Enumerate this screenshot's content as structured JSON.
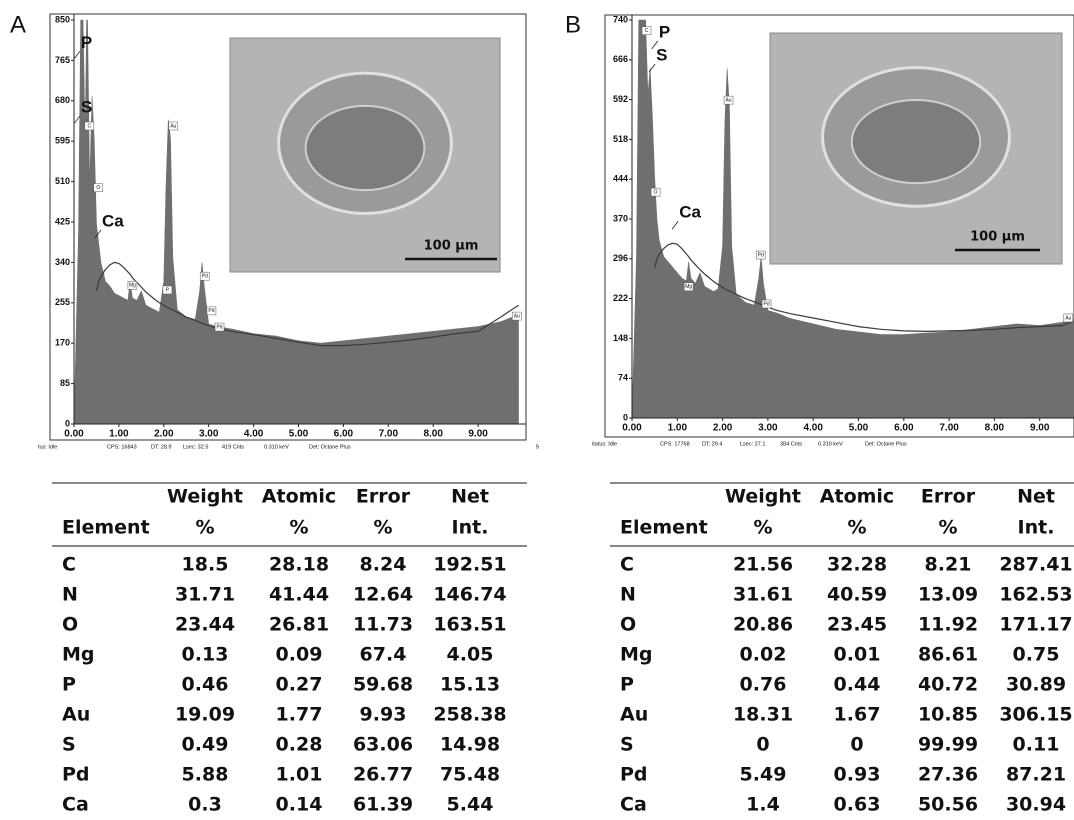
{
  "panel_labels": [
    "A",
    "B"
  ],
  "chart_data": [
    {
      "type": "area",
      "x": [
        0,
        0.1,
        0.15,
        0.2,
        0.25,
        0.28,
        0.3,
        0.35,
        0.4,
        0.45,
        0.5,
        0.55,
        0.6,
        0.7,
        0.8,
        0.9,
        1.0,
        1.1,
        1.2,
        1.25,
        1.3,
        1.4,
        1.5,
        1.6,
        1.7,
        1.8,
        1.9,
        2.0,
        2.05,
        2.1,
        2.15,
        2.2,
        2.3,
        2.5,
        2.7,
        2.8,
        2.85,
        2.9,
        3.0,
        3.2,
        3.5,
        4.0,
        4.5,
        5.0,
        5.5,
        6.0,
        6.5,
        7.0,
        7.5,
        8.0,
        8.5,
        9.0,
        9.5,
        9.9
      ],
      "series": [
        {
          "color": "#6f6f6f",
          "values": [
            0,
            400,
            850,
            850,
            600,
            850,
            850,
            500,
            690,
            600,
            420,
            380,
            340,
            300,
            290,
            275,
            270,
            265,
            260,
            300,
            265,
            260,
            280,
            250,
            245,
            240,
            235,
            300,
            500,
            640,
            600,
            350,
            240,
            225,
            220,
            280,
            340,
            290,
            210,
            205,
            200,
            190,
            185,
            175,
            170,
            175,
            180,
            185,
            190,
            195,
            200,
            205,
            215,
            230
          ]
        },
        {
          "color": "#3a3a3a",
          "values": [
            null,
            null,
            null,
            null,
            null,
            null,
            null,
            null,
            null,
            null,
            280,
            300,
            310,
            325,
            335,
            340,
            338,
            330,
            320,
            315,
            308,
            298,
            288,
            278,
            270,
            262,
            255,
            250,
            247,
            245,
            242,
            240,
            235,
            225,
            218,
            214,
            212,
            210,
            207,
            200,
            195,
            188,
            180,
            172,
            165,
            165,
            168,
            172,
            177,
            183,
            190,
            195,
            225,
            250
          ]
        }
      ],
      "xlim": [
        0,
        10
      ],
      "ylim": [
        0,
        850
      ],
      "yticks": [
        0,
        85,
        170,
        255,
        340,
        425,
        510,
        595,
        680,
        765,
        850
      ],
      "xticks": [
        {
          "value": 0,
          "label": "0.00"
        },
        {
          "value": 1,
          "label": "1.00"
        },
        {
          "value": 2,
          "label": "2.00"
        },
        {
          "value": 3,
          "label": "3.00"
        },
        {
          "value": 4,
          "label": "4.00"
        },
        {
          "value": 5,
          "label": "5.00"
        },
        {
          "value": 6,
          "label": "6.00"
        },
        {
          "value": 7,
          "label": "7.00"
        },
        {
          "value": 8,
          "label": "8.00"
        },
        {
          "value": 9,
          "label": "9.00"
        }
      ],
      "labels": [
        {
          "text": "P",
          "x": 0.13,
          "y": 801
        },
        {
          "text": "S",
          "x": 0.13,
          "y": 665
        },
        {
          "text": "Ca",
          "x": 0.6,
          "y": 425
        }
      ],
      "peak_markers": [
        {
          "text": "C",
          "x": 0.33,
          "y": 627
        },
        {
          "text": "O",
          "x": 0.53,
          "y": 497
        },
        {
          "text": "Mg",
          "x": 1.29,
          "y": 292
        },
        {
          "text": "P",
          "x": 2.07,
          "y": 282
        },
        {
          "text": "Au",
          "x": 2.2,
          "y": 627
        },
        {
          "text": "Pd",
          "x": 2.9,
          "y": 311
        },
        {
          "text": "Pd",
          "x": 3.05,
          "y": 238
        },
        {
          "text": "Pd",
          "x": 3.23,
          "y": 204
        },
        {
          "text": "Au",
          "x": 9.85,
          "y": 227
        }
      ],
      "inset": {
        "scale_label": "100 µm"
      },
      "status": [
        "tus: Idle",
        "CPS: 16843",
        "DT: 28.9",
        "Lsec: 32.5",
        "419 Cnts",
        "0.310 keV",
        "Det: Octane Plus",
        "5"
      ]
    },
    {
      "type": "area",
      "x": [
        0,
        0.1,
        0.15,
        0.2,
        0.25,
        0.28,
        0.3,
        0.35,
        0.4,
        0.45,
        0.5,
        0.55,
        0.6,
        0.7,
        0.8,
        0.9,
        1.0,
        1.1,
        1.2,
        1.25,
        1.3,
        1.4,
        1.5,
        1.6,
        1.7,
        1.8,
        1.9,
        2.0,
        2.05,
        2.1,
        2.15,
        2.2,
        2.3,
        2.5,
        2.7,
        2.8,
        2.85,
        2.9,
        3.0,
        3.2,
        3.5,
        4.0,
        4.5,
        5.0,
        5.5,
        6.0,
        6.5,
        7.0,
        7.5,
        8.0,
        8.5,
        9.0,
        9.5,
        9.75
      ],
      "series": [
        {
          "color": "#6f6f6f",
          "values": [
            0,
            300,
            740,
            740,
            740,
            740,
            740,
            600,
            650,
            560,
            450,
            370,
            330,
            300,
            290,
            280,
            270,
            260,
            255,
            290,
            260,
            250,
            270,
            245,
            240,
            235,
            240,
            320,
            550,
            650,
            580,
            320,
            230,
            215,
            210,
            260,
            300,
            250,
            200,
            195,
            185,
            175,
            165,
            160,
            155,
            155,
            158,
            160,
            165,
            170,
            175,
            172,
            178,
            185
          ]
        },
        {
          "color": "#3a3a3a",
          "values": [
            null,
            null,
            null,
            null,
            null,
            null,
            null,
            null,
            null,
            null,
            280,
            295,
            305,
            315,
            322,
            325,
            323,
            315,
            305,
            300,
            294,
            285,
            276,
            268,
            261,
            254,
            248,
            243,
            240,
            238,
            236,
            234,
            230,
            222,
            216,
            213,
            211,
            209,
            206,
            200,
            194,
            186,
            178,
            170,
            165,
            162,
            161,
            162,
            163,
            165,
            168,
            170,
            172,
            180
          ]
        }
      ],
      "xlim": [
        0,
        9.75
      ],
      "ylim": [
        0,
        740
      ],
      "yticks": [
        0,
        74,
        148,
        222,
        296,
        370,
        444,
        518,
        592,
        666,
        740
      ],
      "xticks": [
        {
          "value": 0,
          "label": "0.00"
        },
        {
          "value": 1,
          "label": "1.00"
        },
        {
          "value": 2,
          "label": "2.00"
        },
        {
          "value": 3,
          "label": "3.00"
        },
        {
          "value": 4,
          "label": "4.00"
        },
        {
          "value": 5,
          "label": "5.00"
        },
        {
          "value": 6,
          "label": "6.00"
        },
        {
          "value": 7,
          "label": "7.00"
        },
        {
          "value": 8,
          "label": "8.00"
        },
        {
          "value": 9,
          "label": "9.00"
        }
      ],
      "labels": [
        {
          "text": "P",
          "x": 0.57,
          "y": 716
        },
        {
          "text": "S",
          "x": 0.51,
          "y": 673
        },
        {
          "text": "Ca",
          "x": 1.02,
          "y": 381
        }
      ],
      "peak_markers": [
        {
          "text": "C",
          "x": 0.31,
          "y": 720
        },
        {
          "text": "O",
          "x": 0.51,
          "y": 420
        },
        {
          "text": "Mg",
          "x": 1.24,
          "y": 244
        },
        {
          "text": "Au",
          "x": 2.12,
          "y": 591
        },
        {
          "text": "Pd",
          "x": 2.83,
          "y": 303
        },
        {
          "text": "Pd",
          "x": 2.96,
          "y": 212
        },
        {
          "text": "Au",
          "x": 9.62,
          "y": 186
        }
      ],
      "inset": {
        "scale_label": "100 µm"
      },
      "status": [
        "itatus: Idle",
        "CPS: 17768",
        "DT: 29.4",
        "Lsec: 27.1",
        "384 Cnts",
        "0.310 keV",
        "Det: Octane Plus"
      ]
    }
  ],
  "tables": [
    {
      "columns": [
        [
          "Element"
        ],
        [
          "Weight",
          "%"
        ],
        [
          "Atomic",
          "%"
        ],
        [
          "Error",
          "%"
        ],
        [
          "Net",
          "Int."
        ]
      ],
      "rows": [
        [
          "C",
          "18.5",
          "28.18",
          "8.24",
          "192.51"
        ],
        [
          "N",
          "31.71",
          "41.44",
          "12.64",
          "146.74"
        ],
        [
          "O",
          "23.44",
          "26.81",
          "11.73",
          "163.51"
        ],
        [
          "Mg",
          "0.13",
          "0.09",
          "67.4",
          "4.05"
        ],
        [
          "P",
          "0.46",
          "0.27",
          "59.68",
          "15.13"
        ],
        [
          "Au",
          "19.09",
          "1.77",
          "9.93",
          "258.38"
        ],
        [
          "S",
          "0.49",
          "0.28",
          "63.06",
          "14.98"
        ],
        [
          "Pd",
          "5.88",
          "1.01",
          "26.77",
          "75.48"
        ],
        [
          "Ca",
          "0.3",
          "0.14",
          "61.39",
          "5.44"
        ]
      ]
    },
    {
      "columns": [
        [
          "Element"
        ],
        [
          "Weight",
          "%"
        ],
        [
          "Atomic",
          "%"
        ],
        [
          "Error",
          "%"
        ],
        [
          "Net",
          "Int."
        ]
      ],
      "rows": [
        [
          "C",
          "21.56",
          "32.28",
          "8.21",
          "287.41"
        ],
        [
          "N",
          "31.61",
          "40.59",
          "13.09",
          "162.53"
        ],
        [
          "O",
          "20.86",
          "23.45",
          "11.92",
          "171.17"
        ],
        [
          "Mg",
          "0.02",
          "0.01",
          "86.61",
          "0.75"
        ],
        [
          "P",
          "0.76",
          "0.44",
          "40.72",
          "30.89"
        ],
        [
          "Au",
          "18.31",
          "1.67",
          "10.85",
          "306.15"
        ],
        [
          "S",
          "0",
          "0",
          "99.99",
          "0.11"
        ],
        [
          "Pd",
          "5.49",
          "0.93",
          "27.36",
          "87.21"
        ],
        [
          "Ca",
          "1.4",
          "0.63",
          "50.56",
          "30.94"
        ]
      ]
    }
  ]
}
